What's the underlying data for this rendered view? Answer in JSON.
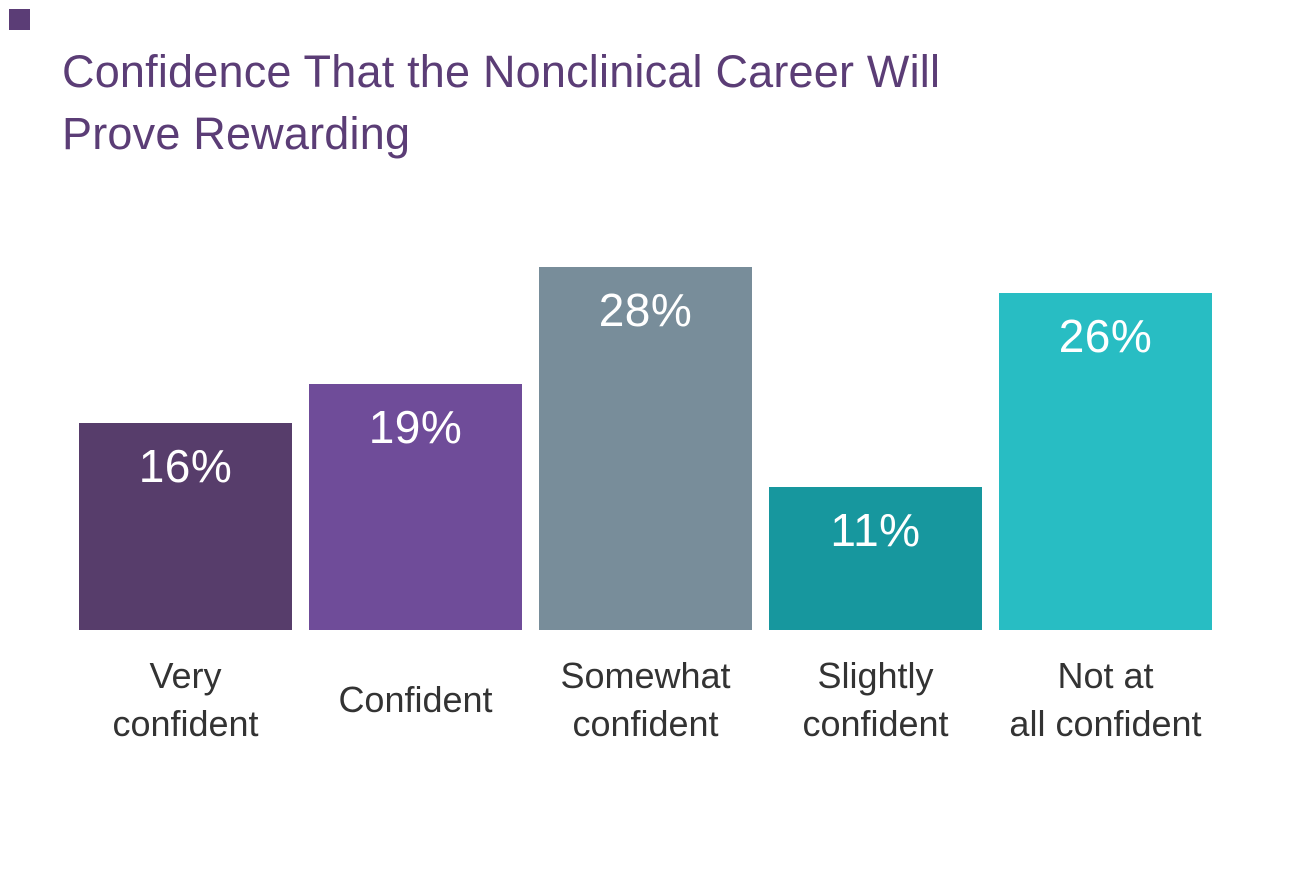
{
  "page": {
    "background_color": "#FFFFFF",
    "accent_square_color": "#5B3D76"
  },
  "title": {
    "lines": [
      "Confidence That the Nonclinical Career Will",
      "Prove Rewarding"
    ],
    "color": "#5B3D76"
  },
  "chart_data": {
    "type": "bar",
    "title": "Confidence That the Nonclinical Career Will Prove Rewarding",
    "categories": [
      "Very confident",
      "Confident",
      "Somewhat confident",
      "Slightly confident",
      "Not at all confident"
    ],
    "category_lines": [
      [
        "Very",
        "confident"
      ],
      [
        "Confident"
      ],
      [
        "Somewhat",
        "confident"
      ],
      [
        "Slightly",
        "confident"
      ],
      [
        "Not at",
        "all confident"
      ]
    ],
    "values": [
      16,
      19,
      28,
      11,
      26
    ],
    "value_labels": [
      "16%",
      "19%",
      "28%",
      "11%",
      "26%"
    ],
    "unit": "%",
    "bar_colors": [
      "#573D6B",
      "#6F4C99",
      "#788D9A",
      "#17979E",
      "#28BDC3"
    ],
    "value_label_color": "#FFFFFF",
    "category_label_color": "#333333",
    "title_color": "#5B3D76",
    "ylim": [
      0,
      28
    ],
    "grid": false,
    "legend": false,
    "axes_visible": false,
    "orientation": "vertical"
  }
}
